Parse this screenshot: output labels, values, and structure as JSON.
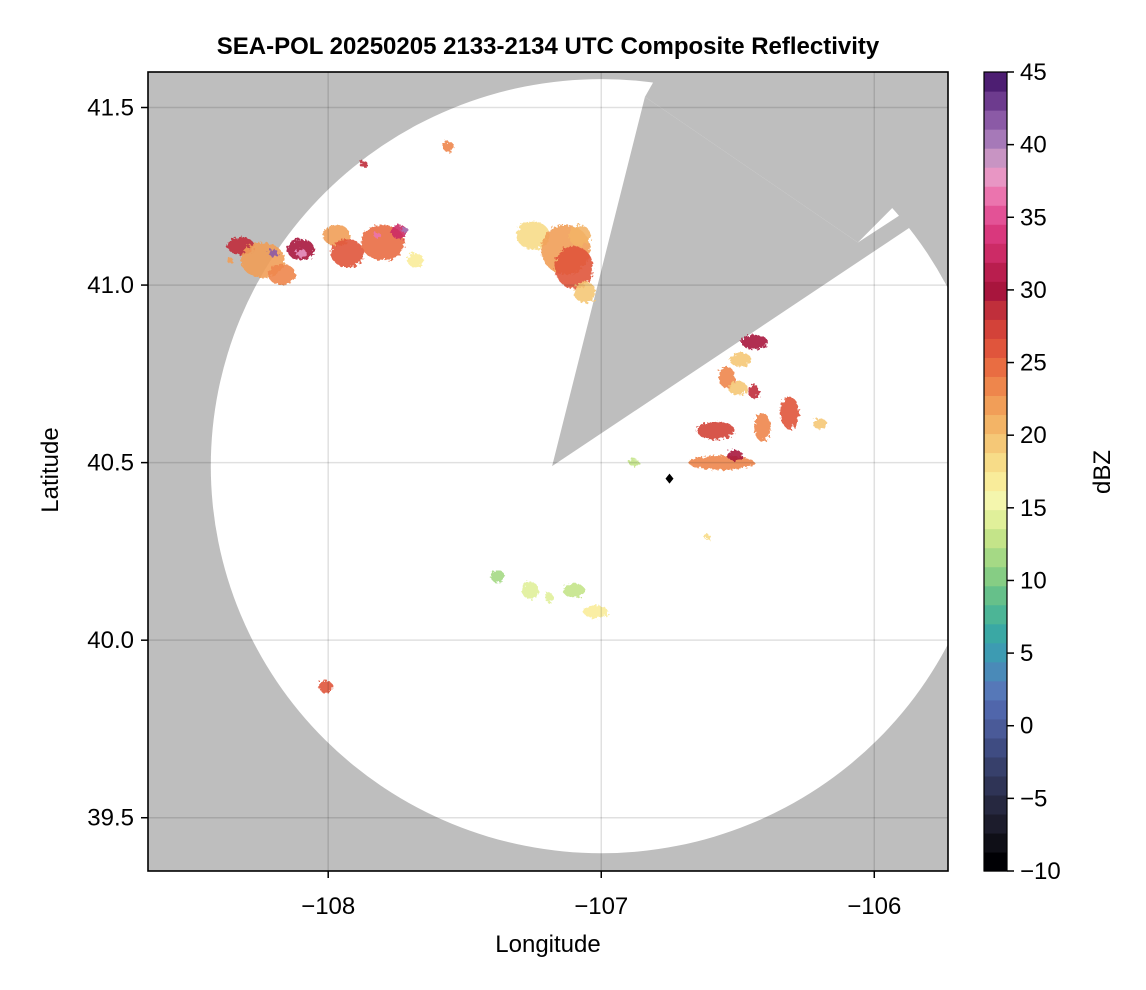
{
  "chart_data": {
    "type": "heatmap",
    "title": "SEA-POL 20250205 2133-2134 UTC Composite Reflectivity",
    "xlabel": "Longitude",
    "ylabel": "Latitude",
    "xlim": [
      -108.66,
      -105.73
    ],
    "ylim": [
      39.35,
      41.6
    ],
    "xticks": [
      -108,
      -107,
      -106
    ],
    "xtick_labels": [
      "−108",
      "−107",
      "−106"
    ],
    "yticks": [
      39.5,
      40.0,
      40.5,
      41.0,
      41.5
    ],
    "ytick_labels": [
      "39.5",
      "40.0",
      "40.5",
      "41.0",
      "41.5"
    ],
    "grid": true,
    "background_color": "#bebebe",
    "radar": {
      "center_lon": -107.0,
      "center_lat": 40.49,
      "radius_lon": 1.43,
      "radius_lat": 1.09,
      "blocked_sector": [
        {
          "lon": -107.18,
          "lat": 40.49
        },
        {
          "lon": -106.84,
          "lat": 41.53
        },
        {
          "lon": -106.06,
          "lat": 41.12
        }
      ],
      "site_marker": {
        "lon": -106.75,
        "lat": 40.455
      }
    },
    "colorbar": {
      "label": "dBZ",
      "min": -10,
      "max": 45,
      "ticks": [
        -10,
        -5,
        0,
        5,
        10,
        15,
        20,
        25,
        30,
        35,
        40,
        45
      ],
      "tick_labels": [
        "−10",
        "−5",
        "0",
        "5",
        "10",
        "15",
        "20",
        "25",
        "30",
        "35",
        "40",
        "45"
      ],
      "colors": [
        "#000004",
        "#0f0f17",
        "#1c1c2c",
        "#262840",
        "#2f3456",
        "#37406b",
        "#3f4c82",
        "#4a5a98",
        "#5066ab",
        "#5678b8",
        "#4a8ab8",
        "#3d9bb2",
        "#3aa8a4",
        "#4cb596",
        "#66c08a",
        "#86cd84",
        "#a5d985",
        "#c4e489",
        "#e0f09a",
        "#f4f6ad",
        "#f9ec9a",
        "#f7dc88",
        "#f5c877",
        "#f3b466",
        "#f19e58",
        "#ee864c",
        "#e96d42",
        "#e0553c",
        "#d34239",
        "#c02f3b",
        "#a8153d",
        "#b91e4e",
        "#cc2b66",
        "#d9387d",
        "#e35296",
        "#eb74ae",
        "#e896c4",
        "#c894c3",
        "#a679b8",
        "#8b5aa6",
        "#6d3b8e",
        "#4d1e72"
      ]
    },
    "echoes": [
      {
        "lon": -108.32,
        "lat": 41.11,
        "rx": 0.05,
        "ry": 0.025,
        "dbz": 28
      },
      {
        "lon": -108.24,
        "lat": 41.07,
        "rx": 0.08,
        "ry": 0.05,
        "dbz": 22
      },
      {
        "lon": -108.17,
        "lat": 41.03,
        "rx": 0.05,
        "ry": 0.03,
        "dbz": 24
      },
      {
        "lon": -108.1,
        "lat": 41.1,
        "rx": 0.05,
        "ry": 0.03,
        "dbz": 30
      },
      {
        "lon": -108.1,
        "lat": 41.09,
        "rx": 0.02,
        "ry": 0.012,
        "dbz": 38
      },
      {
        "lon": -108.2,
        "lat": 41.09,
        "rx": 0.018,
        "ry": 0.01,
        "dbz": 42
      },
      {
        "lon": -107.97,
        "lat": 41.14,
        "rx": 0.05,
        "ry": 0.03,
        "dbz": 22
      },
      {
        "lon": -107.93,
        "lat": 41.09,
        "rx": 0.06,
        "ry": 0.04,
        "dbz": 26
      },
      {
        "lon": -107.8,
        "lat": 41.12,
        "rx": 0.08,
        "ry": 0.05,
        "dbz": 25
      },
      {
        "lon": -107.74,
        "lat": 41.15,
        "rx": 0.03,
        "ry": 0.02,
        "dbz": 33
      },
      {
        "lon": -107.72,
        "lat": 41.155,
        "rx": 0.013,
        "ry": 0.008,
        "dbz": 40
      },
      {
        "lon": -107.82,
        "lat": 41.14,
        "rx": 0.012,
        "ry": 0.007,
        "dbz": 37
      },
      {
        "lon": -107.68,
        "lat": 41.07,
        "rx": 0.03,
        "ry": 0.02,
        "dbz": 17
      },
      {
        "lon": -107.87,
        "lat": 41.34,
        "rx": 0.015,
        "ry": 0.01,
        "dbz": 28
      },
      {
        "lon": -107.56,
        "lat": 41.39,
        "rx": 0.02,
        "ry": 0.015,
        "dbz": 24
      },
      {
        "lon": -107.25,
        "lat": 41.14,
        "rx": 0.06,
        "ry": 0.04,
        "dbz": 18
      },
      {
        "lon": -107.13,
        "lat": 41.1,
        "rx": 0.09,
        "ry": 0.07,
        "dbz": 22
      },
      {
        "lon": -107.1,
        "lat": 41.05,
        "rx": 0.07,
        "ry": 0.06,
        "dbz": 26
      },
      {
        "lon": -107.08,
        "lat": 41.14,
        "rx": 0.04,
        "ry": 0.03,
        "dbz": 21
      },
      {
        "lon": -107.06,
        "lat": 40.98,
        "rx": 0.04,
        "ry": 0.03,
        "dbz": 19
      },
      {
        "lon": -106.44,
        "lat": 40.84,
        "rx": 0.05,
        "ry": 0.02,
        "dbz": 30
      },
      {
        "lon": -106.49,
        "lat": 40.79,
        "rx": 0.04,
        "ry": 0.02,
        "dbz": 20
      },
      {
        "lon": -106.54,
        "lat": 40.74,
        "rx": 0.03,
        "ry": 0.03,
        "dbz": 24
      },
      {
        "lon": -106.5,
        "lat": 40.71,
        "rx": 0.035,
        "ry": 0.02,
        "dbz": 19
      },
      {
        "lon": -106.44,
        "lat": 40.7,
        "rx": 0.02,
        "ry": 0.02,
        "dbz": 28
      },
      {
        "lon": -106.31,
        "lat": 40.64,
        "rx": 0.035,
        "ry": 0.045,
        "dbz": 26
      },
      {
        "lon": -106.41,
        "lat": 40.6,
        "rx": 0.03,
        "ry": 0.04,
        "dbz": 24
      },
      {
        "lon": -106.58,
        "lat": 40.59,
        "rx": 0.07,
        "ry": 0.025,
        "dbz": 27
      },
      {
        "lon": -106.56,
        "lat": 40.5,
        "rx": 0.12,
        "ry": 0.02,
        "dbz": 24
      },
      {
        "lon": -106.51,
        "lat": 40.52,
        "rx": 0.03,
        "ry": 0.015,
        "dbz": 30
      },
      {
        "lon": -106.2,
        "lat": 40.61,
        "rx": 0.025,
        "ry": 0.015,
        "dbz": 20
      },
      {
        "lon": -106.88,
        "lat": 40.5,
        "rx": 0.02,
        "ry": 0.01,
        "dbz": 13
      },
      {
        "lon": -107.38,
        "lat": 40.18,
        "rx": 0.025,
        "ry": 0.018,
        "dbz": 12
      },
      {
        "lon": -107.26,
        "lat": 40.14,
        "rx": 0.03,
        "ry": 0.025,
        "dbz": 14
      },
      {
        "lon": -107.1,
        "lat": 40.14,
        "rx": 0.04,
        "ry": 0.02,
        "dbz": 13
      },
      {
        "lon": -107.02,
        "lat": 40.08,
        "rx": 0.045,
        "ry": 0.018,
        "dbz": 17
      },
      {
        "lon": -107.19,
        "lat": 40.12,
        "rx": 0.015,
        "ry": 0.015,
        "dbz": 14
      },
      {
        "lon": -108.01,
        "lat": 39.87,
        "rx": 0.025,
        "ry": 0.018,
        "dbz": 26
      },
      {
        "lon": -106.61,
        "lat": 40.29,
        "rx": 0.008,
        "ry": 0.006,
        "dbz": 18
      },
      {
        "lon": -108.36,
        "lat": 41.07,
        "rx": 0.01,
        "ry": 0.007,
        "dbz": 22
      }
    ]
  }
}
